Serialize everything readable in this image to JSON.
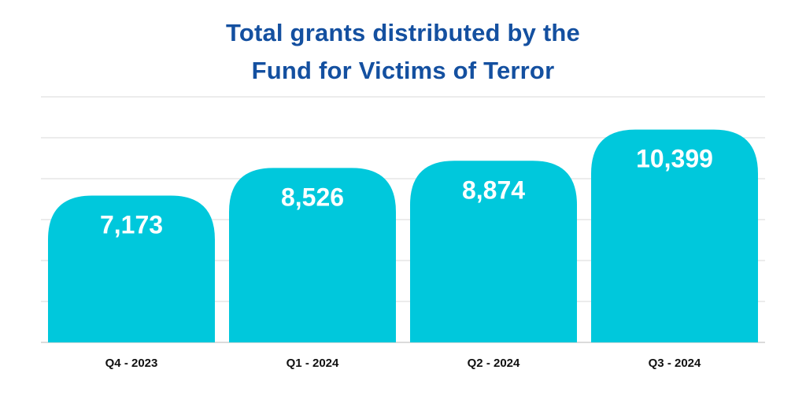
{
  "chart_data": {
    "type": "bar",
    "title_lines": [
      "Total grants distributed by the",
      "Fund for Victims of Terror"
    ],
    "categories": [
      "Q4 - 2023",
      "Q1 - 2024",
      "Q2 - 2024",
      "Q3 - 2024"
    ],
    "values": [
      7173,
      8526,
      8874,
      10399
    ],
    "value_labels": [
      "7,173",
      "8,526",
      "8,874",
      "10,399"
    ],
    "xlabel": "",
    "ylabel": "",
    "ylim": [
      0,
      12000
    ],
    "grid": true,
    "bar_color": "#00c8dc",
    "title_color": "#1450a0"
  }
}
